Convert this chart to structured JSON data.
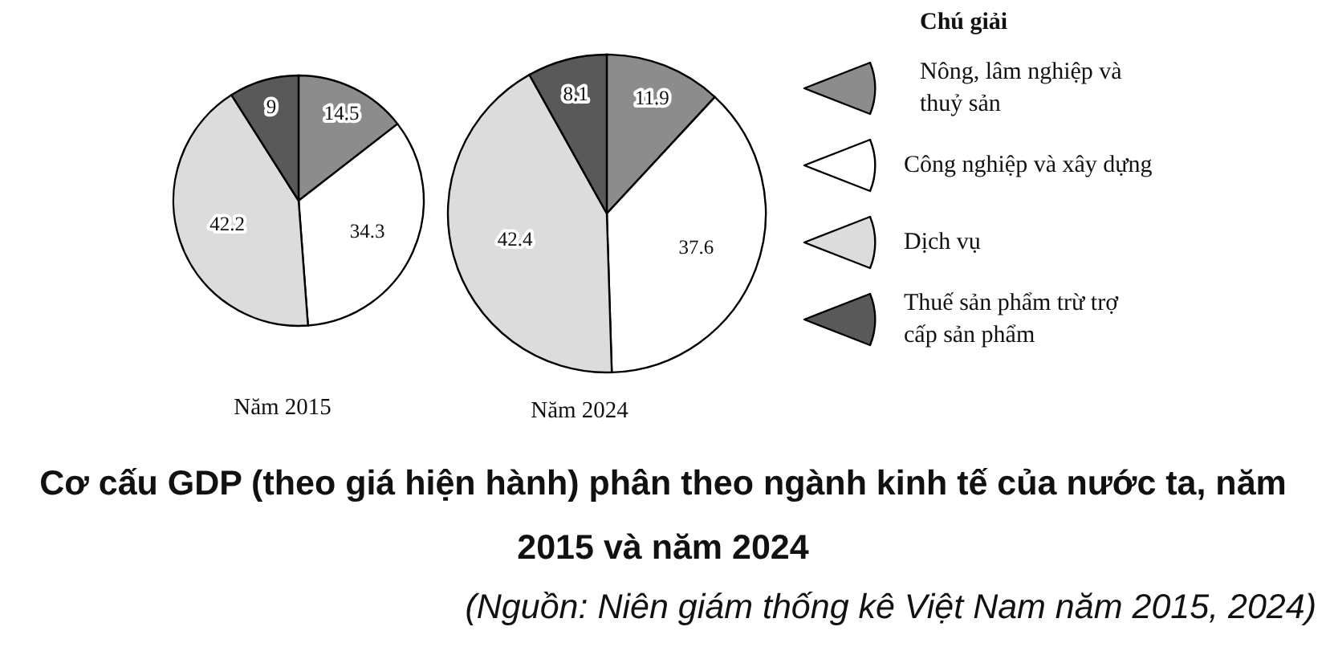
{
  "chart_data": {
    "type": "pie",
    "title": "Cơ cấu GDP (theo giá hiện hành) phân theo ngành kinh tế của nước ta, năm 2015 và năm 2024",
    "categories": [
      "Nông, lâm nghiệp và thuỷ sản",
      "Công nghiệp và xây dựng",
      "Dịch vụ",
      "Thuế sản phẩm trừ trợ cấp sản phẩm"
    ],
    "series": [
      {
        "name": "Năm 2015",
        "values": [
          14.5,
          34.3,
          42.2,
          9
        ]
      },
      {
        "name": "Năm 2024",
        "values": [
          11.9,
          37.6,
          42.4,
          8.1
        ]
      }
    ],
    "colors": [
      "#8c8c8c",
      "#ffffff",
      "#dcdcdc",
      "#595959"
    ],
    "data_labels": true,
    "legend": "right",
    "legend_title": "Chú giải",
    "annotations": [
      "(Nguồn: Niên giám thống kê Việt Nam năm 2015, 2024)"
    ]
  }
}
